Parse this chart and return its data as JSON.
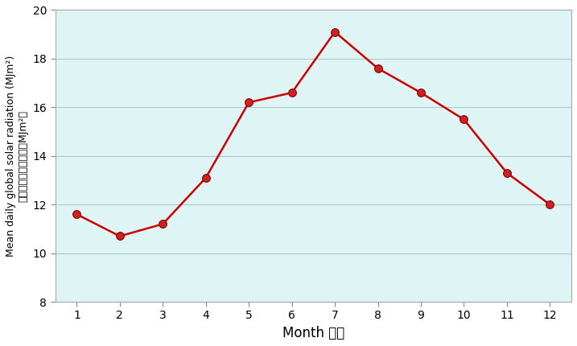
{
  "months": [
    1,
    2,
    3,
    4,
    5,
    6,
    7,
    8,
    9,
    10,
    11,
    12
  ],
  "values": [
    11.6,
    10.7,
    11.2,
    13.1,
    16.2,
    16.6,
    19.1,
    17.6,
    16.6,
    15.5,
    13.3,
    12.0
  ],
  "line_color": "#cc0000",
  "marker_facecolor": "#cc2222",
  "marker_edgecolor": "#880000",
  "plot_bg_color": "#dff4f4",
  "outer_bg_color": "#ffffff",
  "ylabel_english": "Mean daily global solar radiation (MJm²)",
  "ylabel_chinese": "平均每日太陽總輻射（MJm²）",
  "xlabel": "Month 月份",
  "ylim": [
    8,
    20
  ],
  "xlim": [
    0.5,
    12.5
  ],
  "yticks": [
    8,
    10,
    12,
    14,
    16,
    18,
    20
  ],
  "xticks": [
    1,
    2,
    3,
    4,
    5,
    6,
    7,
    8,
    9,
    10,
    11,
    12
  ],
  "grid_color": "#aacccc",
  "marker_size": 7,
  "line_width": 1.8,
  "tick_fontsize": 10,
  "xlabel_fontsize": 12,
  "ylabel_fontsize": 9
}
